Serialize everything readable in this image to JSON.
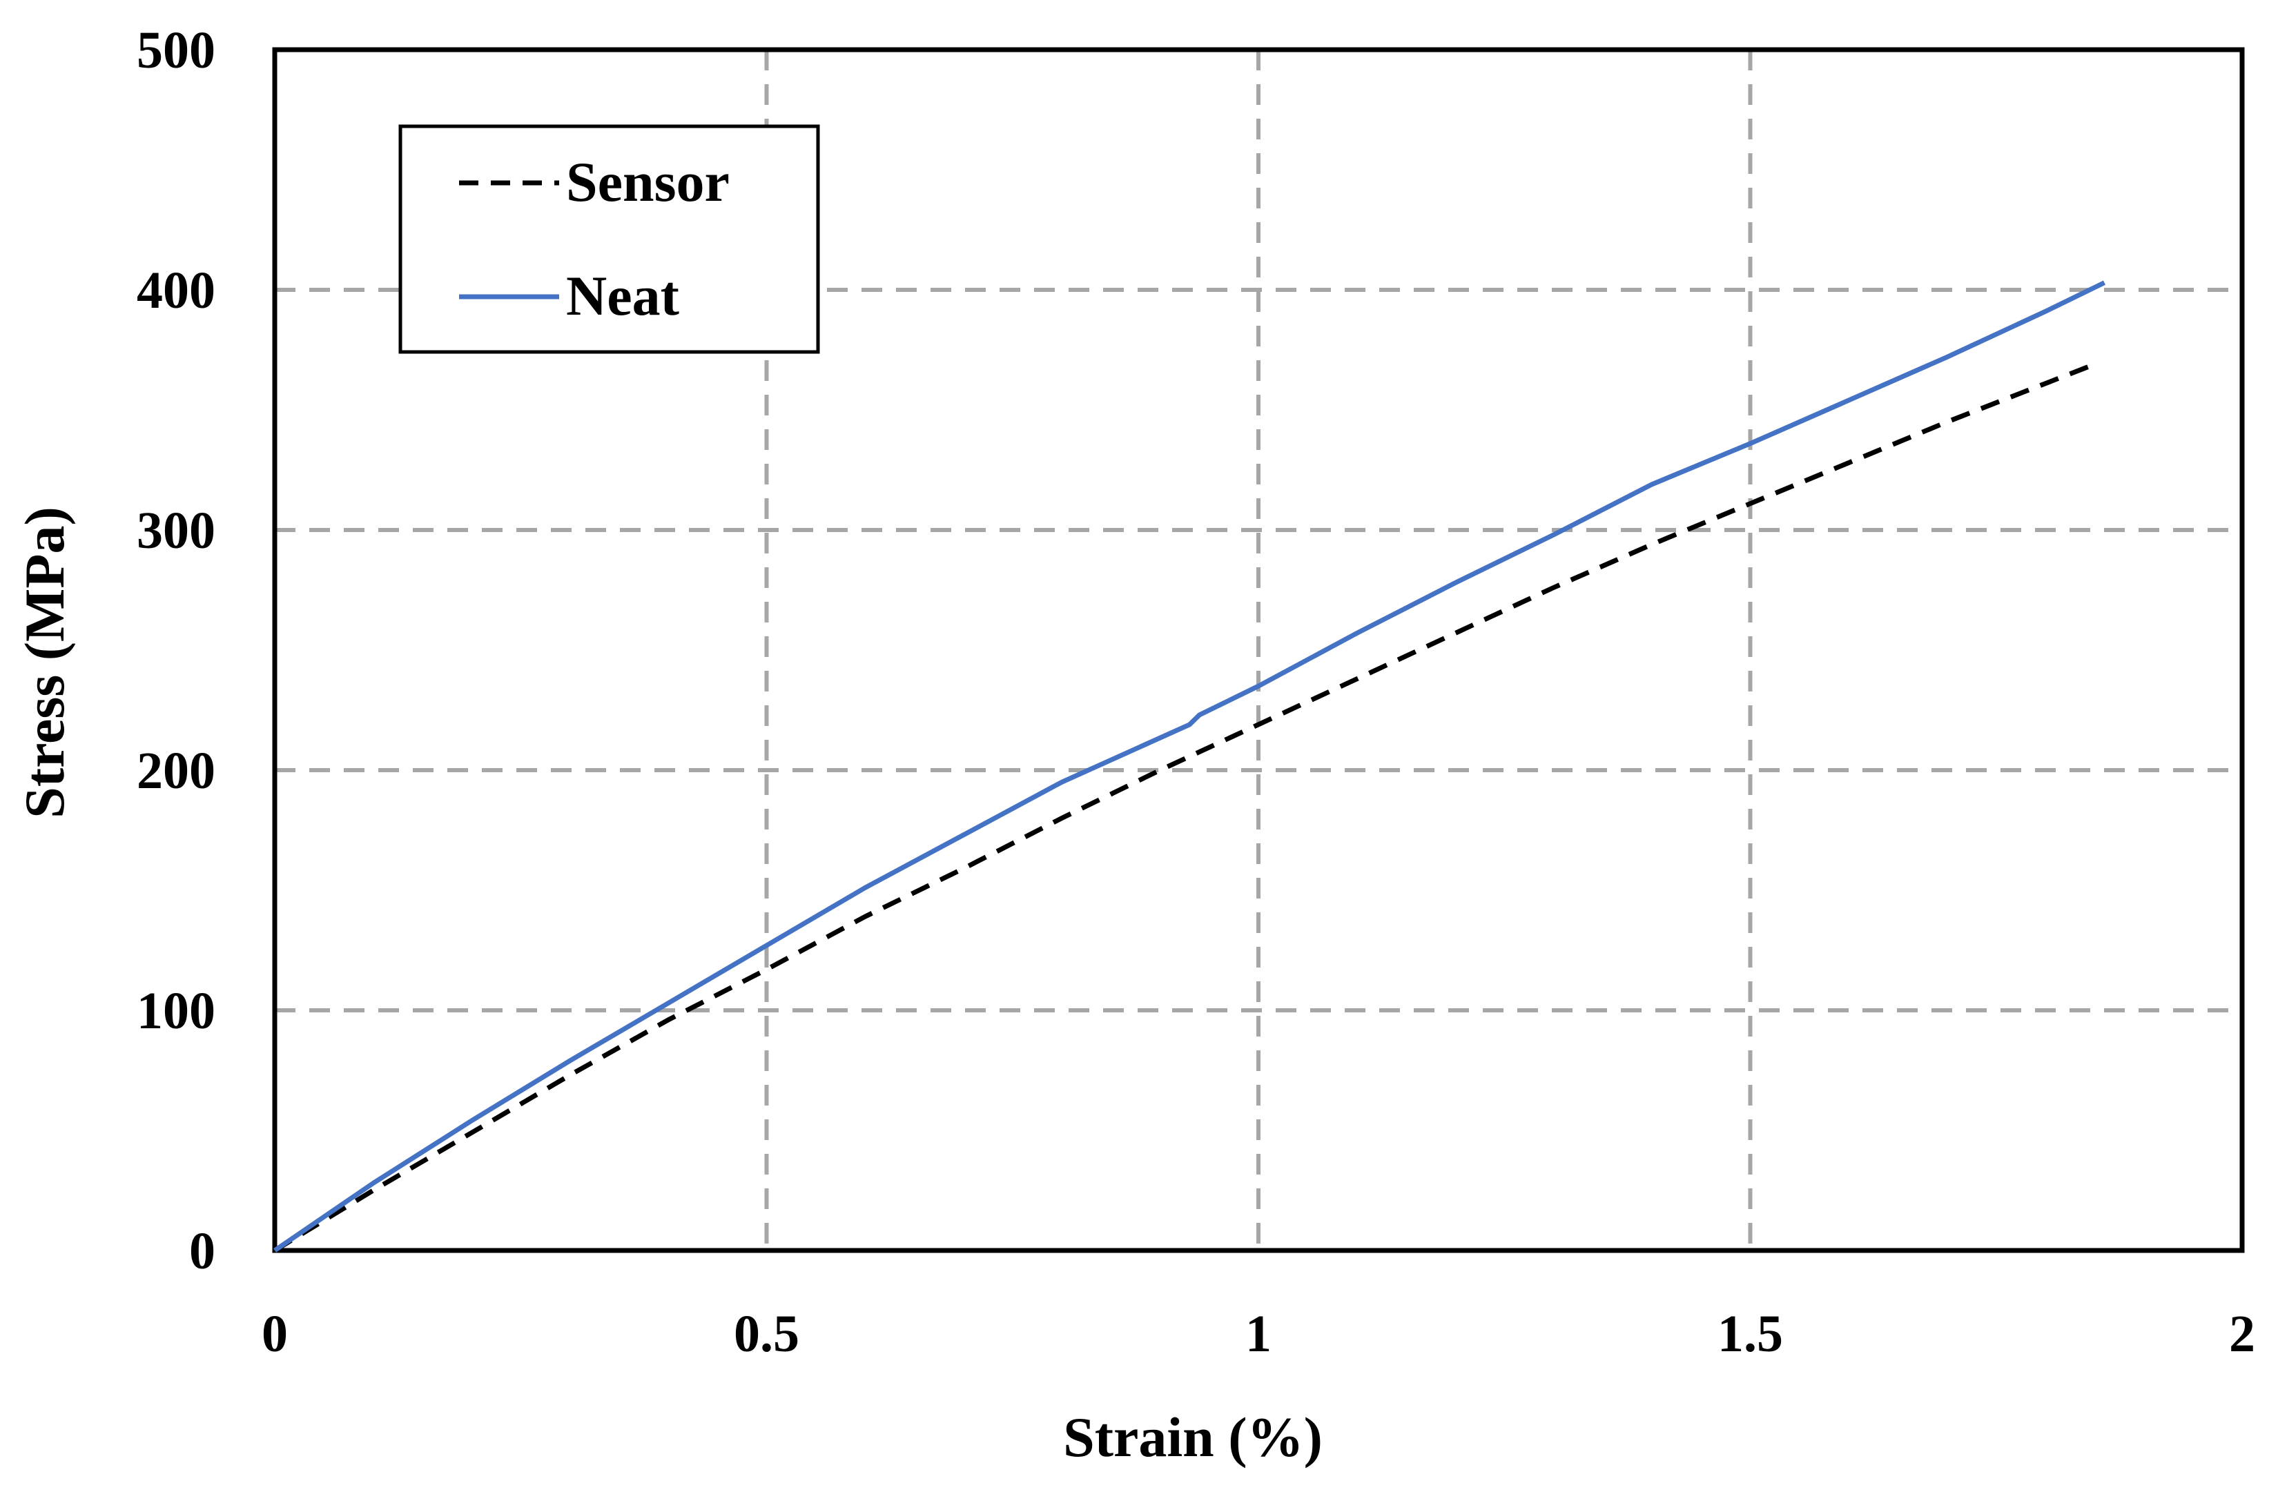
{
  "chart_data": {
    "type": "line",
    "title": "",
    "xlabel": "Strain (%)",
    "ylabel": "Stress (MPa)",
    "xlim": [
      0,
      2
    ],
    "ylim": [
      0,
      500
    ],
    "xticks": [
      0,
      0.5,
      1,
      1.5,
      2
    ],
    "xtick_labels": [
      "0",
      "0.5",
      "1",
      "1.5",
      "2"
    ],
    "yticks": [
      0,
      100,
      200,
      300,
      400,
      500
    ],
    "ytick_labels": [
      "0",
      "100",
      "200",
      "300",
      "400",
      "500"
    ],
    "grid": true,
    "legend": "top-left",
    "series": [
      {
        "name": "Sensor",
        "style": "dashed",
        "color": "#000000",
        "x": [
          0,
          0.1,
          0.2,
          0.3,
          0.4,
          0.5,
          0.6,
          0.7,
          0.8,
          0.9,
          1.0,
          1.1,
          1.2,
          1.3,
          1.4,
          1.5,
          1.6,
          1.7,
          1.8,
          1.85
        ],
        "y": [
          0,
          25,
          49,
          73,
          96,
          117,
          139,
          159,
          180,
          200,
          219,
          238,
          257,
          276,
          294,
          311,
          328,
          345,
          361,
          369
        ]
      },
      {
        "name": "Neat",
        "style": "solid",
        "color": "#4472C4",
        "x": [
          0,
          0.1,
          0.2,
          0.3,
          0.4,
          0.5,
          0.6,
          0.7,
          0.8,
          0.93,
          0.94,
          1.0,
          1.1,
          1.2,
          1.3,
          1.4,
          1.5,
          1.6,
          1.7,
          1.8,
          1.86
        ],
        "y": [
          0,
          28,
          54,
          79,
          103,
          127,
          151,
          173,
          195,
          219,
          223,
          235,
          257,
          278,
          298,
          319,
          336,
          354,
          372,
          391,
          403
        ]
      }
    ]
  }
}
